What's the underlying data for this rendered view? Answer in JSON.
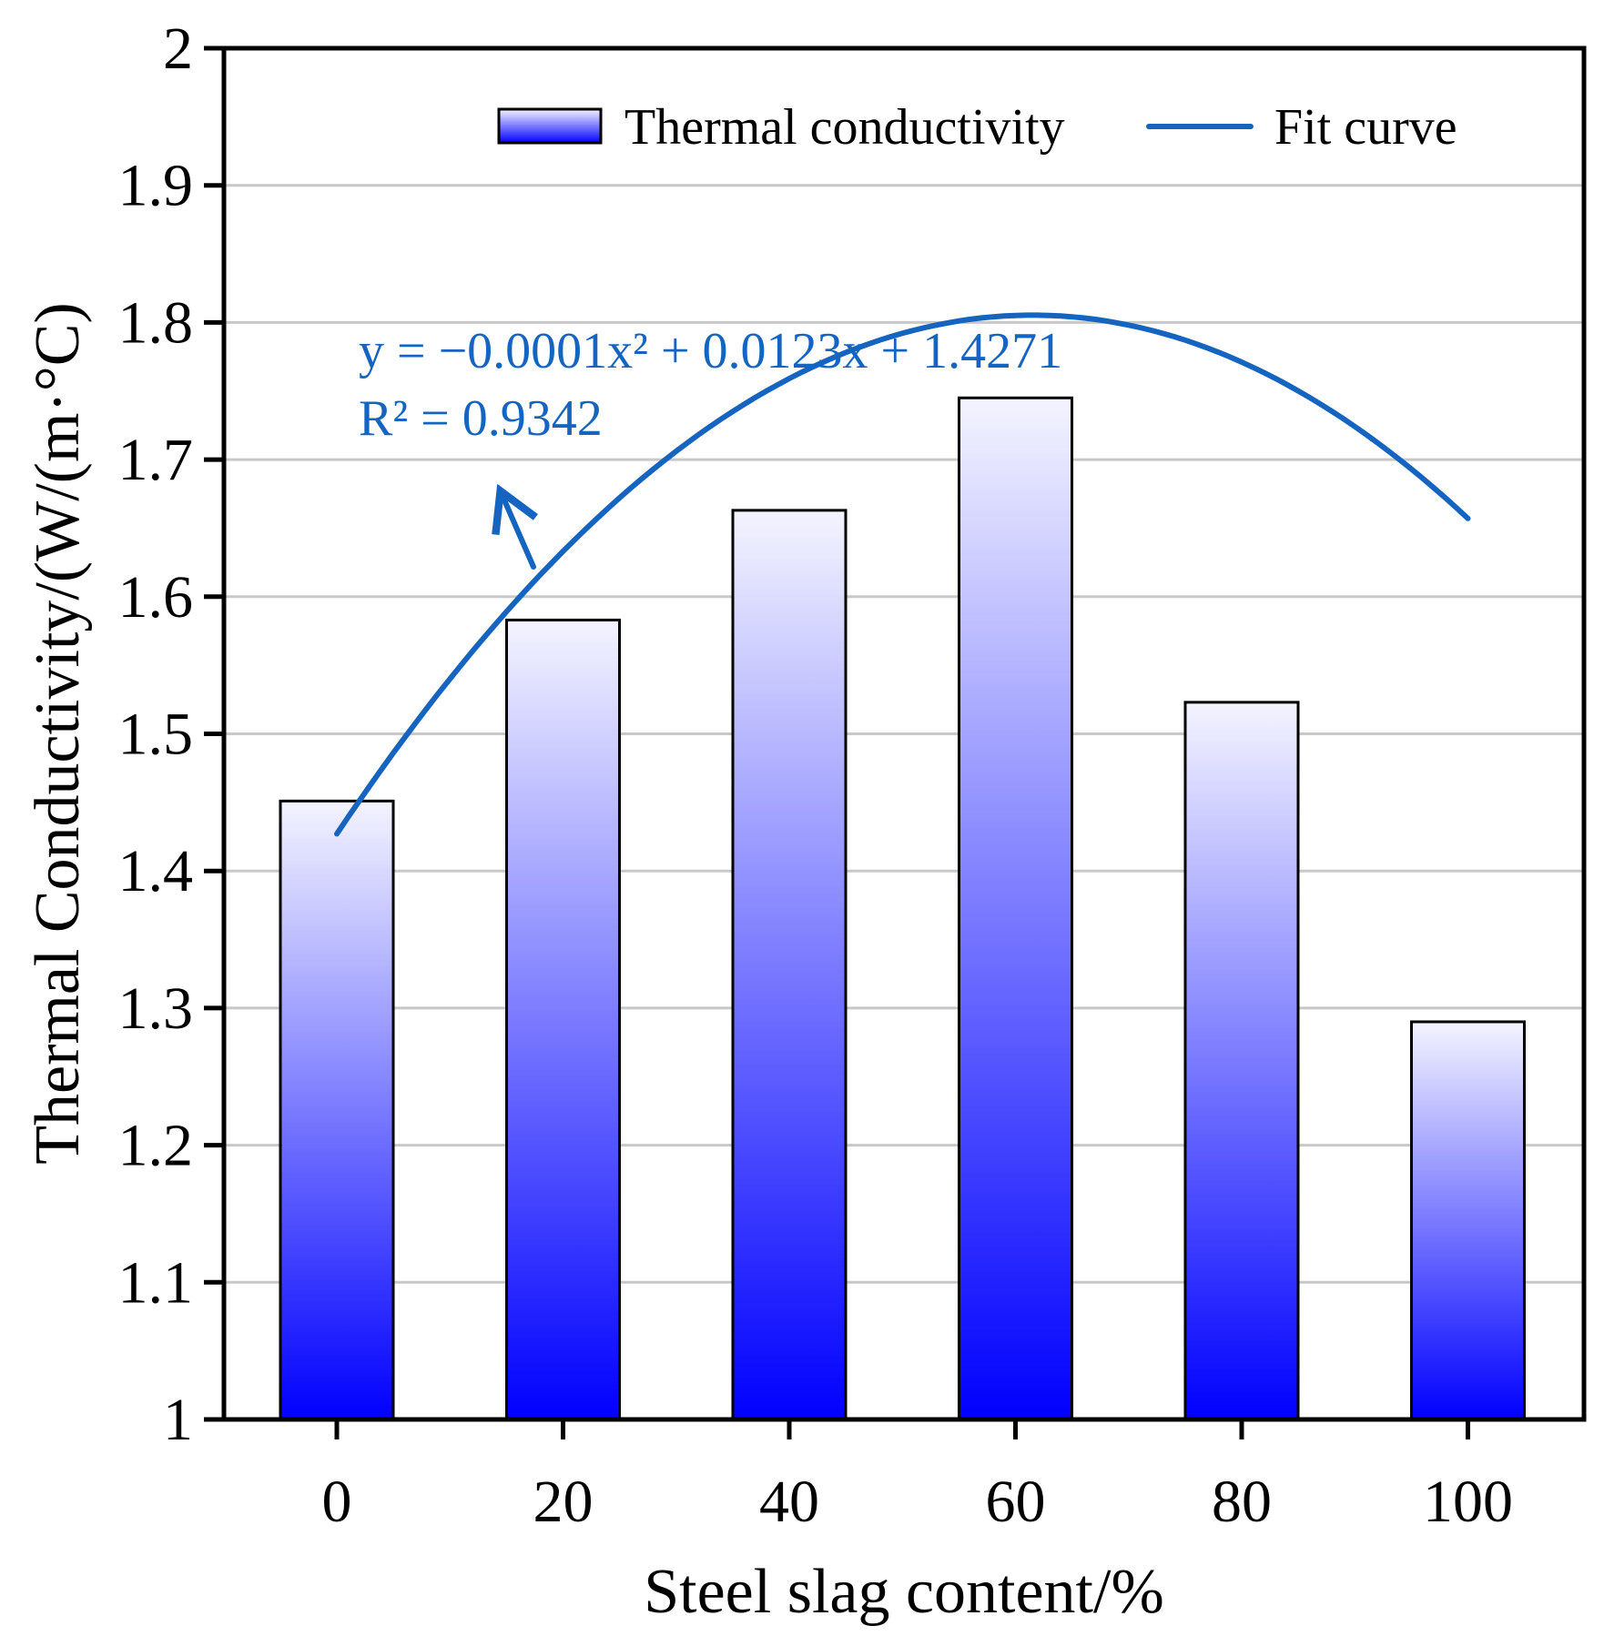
{
  "chart_data": {
    "type": "bar",
    "xlabel": "Steel slag content/%",
    "ylabel": "Thermal Conductivity/(W/(m·°C)",
    "categories": [
      "0",
      "20",
      "40",
      "60",
      "80",
      "100"
    ],
    "x": [
      0,
      20,
      40,
      60,
      80,
      100
    ],
    "series": [
      {
        "name": "Thermal conductivity",
        "type": "bar",
        "values": [
          1.451,
          1.583,
          1.663,
          1.745,
          1.523,
          1.29
        ]
      },
      {
        "name": "Fit curve",
        "type": "line",
        "x_range": [
          0,
          100
        ],
        "coefficients": {
          "a": -0.0001,
          "b": 0.0123,
          "c": 1.4271
        }
      }
    ],
    "ylim": [
      1,
      2
    ],
    "yticks": [
      1,
      1.1,
      1.2,
      1.3,
      1.4,
      1.5,
      1.6,
      1.7,
      1.8,
      1.9,
      2
    ],
    "ytick_labels": [
      "1",
      "1.1",
      "1.2",
      "1.3",
      "1.4",
      "1.5",
      "1.6",
      "1.7",
      "1.8",
      "1.9",
      "2"
    ],
    "grid": true,
    "legend": {
      "position": "top",
      "items": [
        "Thermal conductivity",
        "Fit curve"
      ]
    },
    "annotation": {
      "equation": "y = −0.0001x² + 0.0123x + 1.4271",
      "r_squared": "R² = 0.9342"
    },
    "colors": {
      "bar_top": "#f4f4ff",
      "bar_bottom": "#0000ff",
      "fit_curve": "#1565c0",
      "annotation": "#1565c0",
      "grid": "#c8c8c8",
      "axis": "#000000"
    }
  }
}
